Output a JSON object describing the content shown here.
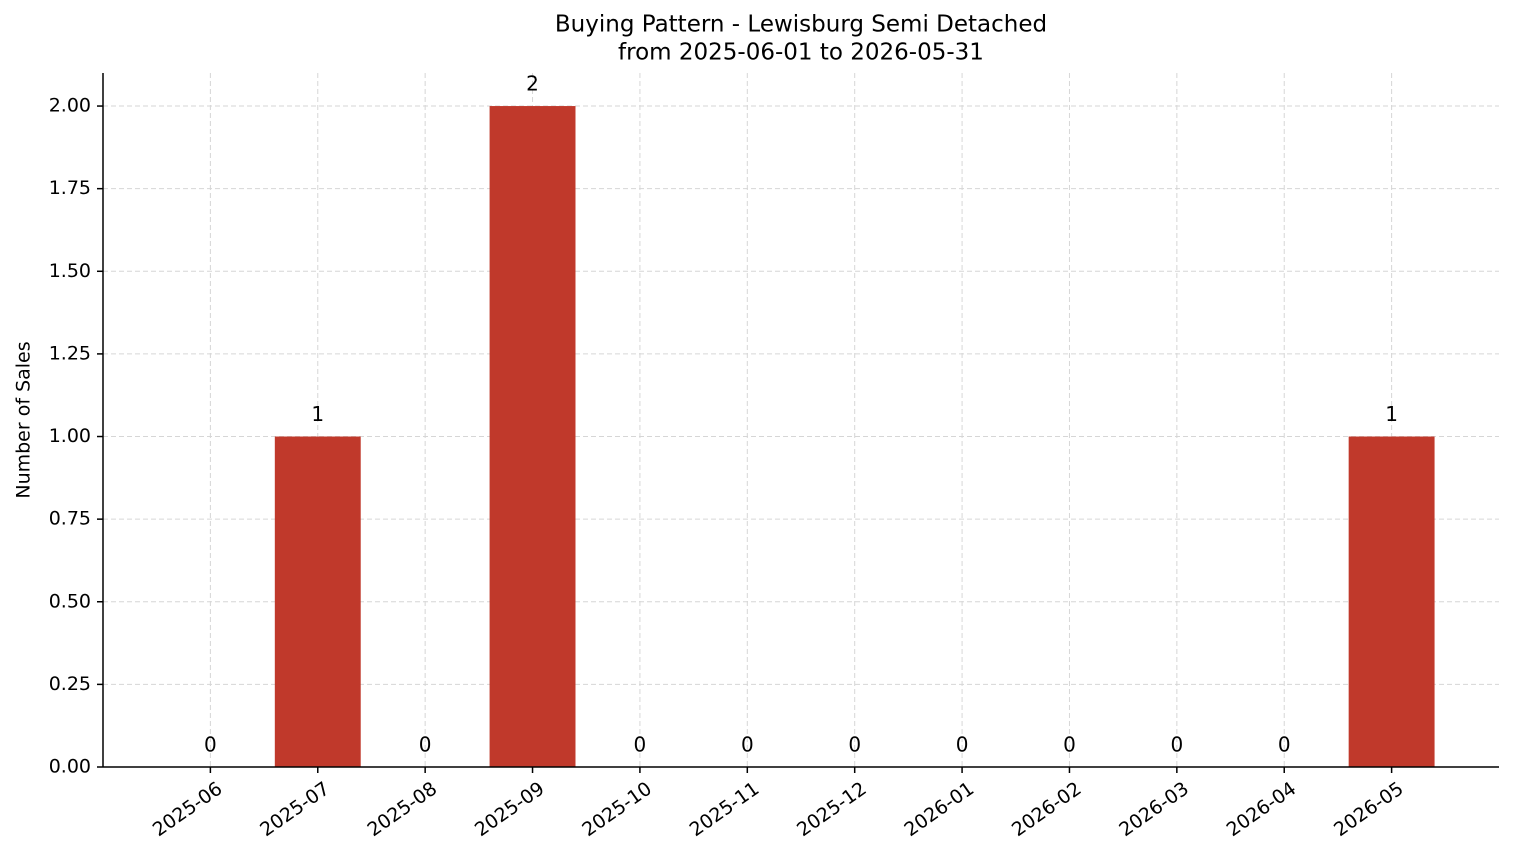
{
  "chart_data": {
    "type": "bar",
    "title": "Buying Pattern - Lewisburg Semi Detached",
    "subtitle": "from 2025-06-01 to 2026-05-31",
    "y_label": "Number of Sales",
    "categories": [
      "2025-06",
      "2025-07",
      "2025-08",
      "2025-09",
      "2025-10",
      "2025-11",
      "2025-12",
      "2026-01",
      "2026-02",
      "2026-03",
      "2026-04",
      "2026-05"
    ],
    "values": [
      0,
      1,
      0,
      2,
      0,
      0,
      0,
      0,
      0,
      0,
      0,
      1
    ],
    "color": "#c0392b",
    "ylim": [
      0,
      2.1
    ],
    "yticks": [
      {
        "value": 0,
        "label": "0.00"
      },
      {
        "value": 0.25,
        "label": "0.25"
      },
      {
        "value": 0.5,
        "label": "0.50"
      },
      {
        "value": 0.75,
        "label": "0.75"
      },
      {
        "value": 1,
        "label": "1.00"
      },
      {
        "value": 1.25,
        "label": "1.25"
      },
      {
        "value": 1.5,
        "label": "1.50"
      },
      {
        "value": 1.75,
        "label": "1.75"
      },
      {
        "value": 2,
        "label": "2.00"
      }
    ],
    "grid": true
  }
}
